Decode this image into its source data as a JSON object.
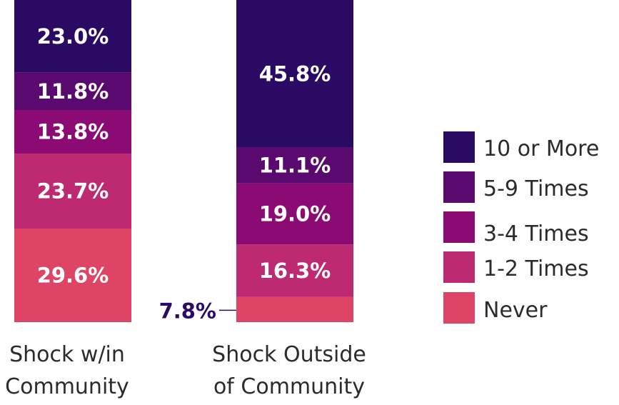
{
  "chart_data": {
    "type": "bar",
    "stacked": true,
    "normalized": true,
    "categories": [
      [
        "Shock w/in",
        "Community"
      ],
      [
        "Shock Outside",
        "of Community"
      ]
    ],
    "series": [
      {
        "name": "10 or More",
        "color": "#2b0a63",
        "values": [
          23.0,
          45.8
        ],
        "labels": [
          "23.0%",
          "45.8%"
        ]
      },
      {
        "name": "5-9 Times",
        "color": "#5a0a6e",
        "values": [
          11.8,
          11.1
        ],
        "labels": [
          "11.8%",
          "11.1%"
        ]
      },
      {
        "name": "3-4 Times",
        "color": "#8c0a73",
        "values": [
          13.8,
          19.0
        ],
        "labels": [
          "13.8%",
          "19.0%"
        ]
      },
      {
        "name": "1-2 Times",
        "color": "#bd2a72",
        "values": [
          23.7,
          16.3
        ],
        "labels": [
          "23.7%",
          "16.3%"
        ]
      },
      {
        "name": "Never",
        "color": "#de4466",
        "values": [
          29.6,
          7.8
        ],
        "labels": [
          "29.6%",
          "7.8%"
        ]
      }
    ],
    "ylim": [
      0,
      100
    ],
    "legend": "right",
    "grid": false,
    "outside_label_color": "#2b0a63"
  }
}
